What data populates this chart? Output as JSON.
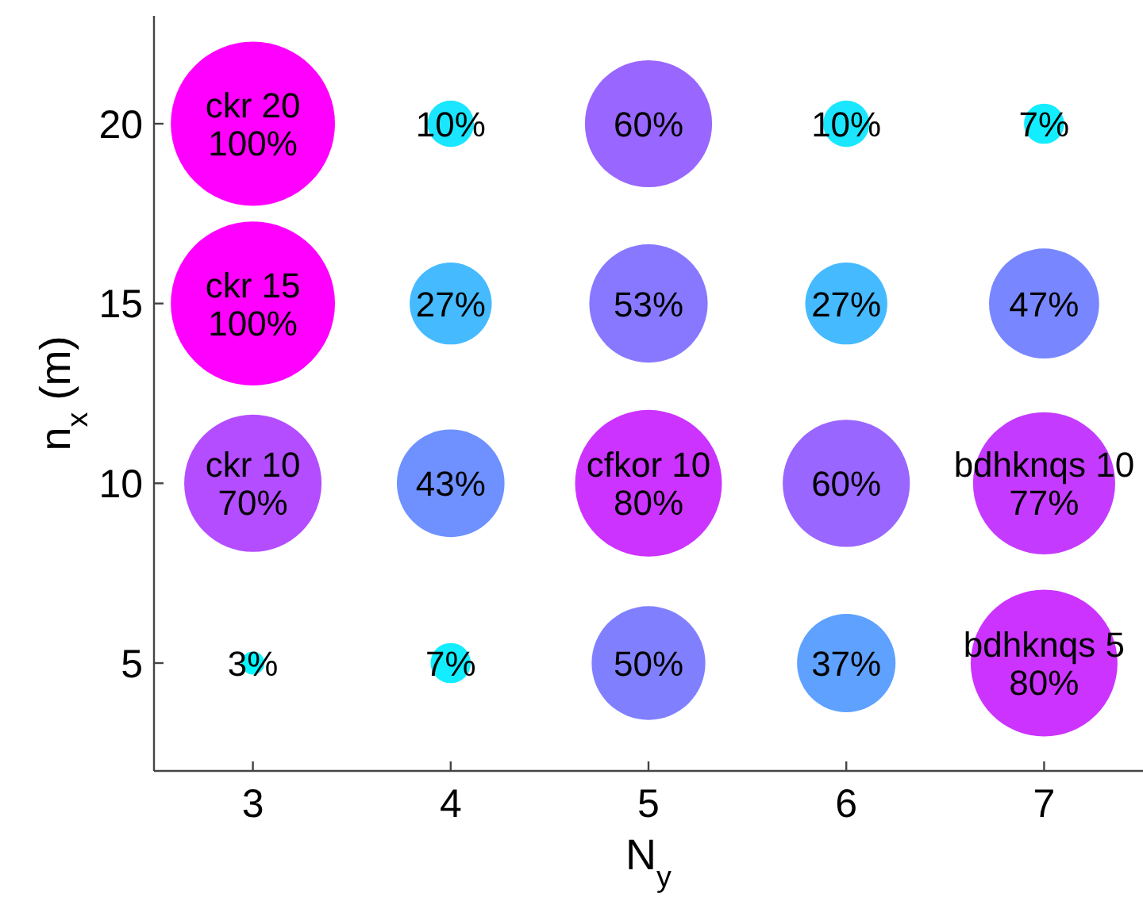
{
  "chart_data": {
    "type": "bubble",
    "xlabel": "N$_{y}$",
    "ylabel": "n$_{x}$ (m)",
    "xlim": [
      2.5,
      7.5
    ],
    "ylim": [
      2,
      23
    ],
    "xticks": [
      3,
      4,
      5,
      6,
      7
    ],
    "yticks": [
      5,
      10,
      15,
      20
    ],
    "marker": "circle",
    "series": [
      {
        "x": [
          3,
          4,
          5,
          6,
          7,
          3,
          4,
          5,
          6,
          7,
          3,
          4,
          5,
          6,
          7,
          3,
          4,
          5,
          6,
          7
        ],
        "values": [
          20,
          20,
          20,
          20,
          20,
          15,
          15,
          15,
          15,
          15,
          10,
          10,
          10,
          10,
          10,
          5,
          5,
          5,
          5,
          5
        ],
        "sizes": [
          1,
          0.08,
          0.6,
          0.08,
          0.06,
          1,
          0.25,
          0.52,
          0.25,
          0.45,
          0.7,
          0.43,
          0.8,
          0.6,
          0.75,
          0.02,
          0.06,
          0.48,
          0.36,
          0.8
        ],
        "colors": [
          "#ff00ff",
          "#1ae6ff",
          "#9966ff",
          "#1ae6ff",
          "#12edff",
          "#ff00ff",
          "#45baff",
          "#8778ff",
          "#45baff",
          "#7887ff",
          "#b34dff",
          "#6e91ff",
          "#cc33ff",
          "#9966ff",
          "#c43bff",
          "#08f7ff",
          "#12edff",
          "#8080ff",
          "#5ea1ff",
          "#cc33ff"
        ]
      }
    ],
    "annotations": [
      {
        "text": "ckr 20\n100%",
        "x": 3,
        "y": 20
      },
      {
        "text": "10%",
        "x": 4,
        "y": 20
      },
      {
        "text": "60%",
        "x": 5,
        "y": 20
      },
      {
        "text": "10%",
        "x": 6,
        "y": 20
      },
      {
        "text": "7%",
        "x": 7,
        "y": 20
      },
      {
        "text": "ckr 15\n100%",
        "x": 3,
        "y": 15
      },
      {
        "text": "27%",
        "x": 4,
        "y": 15
      },
      {
        "text": "53%",
        "x": 5,
        "y": 15
      },
      {
        "text": "27%",
        "x": 6,
        "y": 15
      },
      {
        "text": "47%",
        "x": 7,
        "y": 15
      },
      {
        "text": "ckr 10\n70%",
        "x": 3,
        "y": 10
      },
      {
        "text": "43%",
        "x": 4,
        "y": 10
      },
      {
        "text": "cfkor 10\n80%",
        "x": 5,
        "y": 10
      },
      {
        "text": "60%",
        "x": 6,
        "y": 10
      },
      {
        "text": "bdhknqs 10\n77%",
        "x": 7,
        "y": 10
      },
      {
        "text": "3%",
        "x": 3,
        "y": 5
      },
      {
        "text": "7%",
        "x": 4,
        "y": 5
      },
      {
        "text": "50%",
        "x": 5,
        "y": 5
      },
      {
        "text": "37%",
        "x": 6,
        "y": 5
      },
      {
        "text": "bdhknqs 5\n80%",
        "x": 7,
        "y": 5
      }
    ]
  }
}
